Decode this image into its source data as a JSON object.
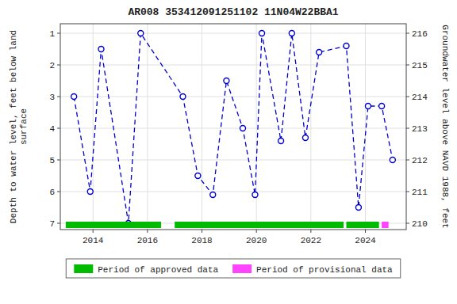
{
  "chart_data": {
    "type": "line",
    "title": "AR008 353412091251102 11N04W22BBA1",
    "ylabel": "Depth to water level, feet below land\nsurface",
    "y2label": "Groundwater level above NAVD 1988, feet",
    "x": [
      2013.3,
      2013.9,
      2014.3,
      2015.3,
      2015.75,
      2017.3,
      2017.85,
      2018.4,
      2018.9,
      2019.5,
      2019.95,
      2020.2,
      2020.9,
      2021.3,
      2021.8,
      2022.3,
      2023.3,
      2023.75,
      2024.1,
      2024.6,
      2025.0
    ],
    "series": [
      {
        "values": [
          3.0,
          6.0,
          1.5,
          7.0,
          1.0,
          3.0,
          5.5,
          6.1,
          2.5,
          4.0,
          6.1,
          1.0,
          4.4,
          1.0,
          4.3,
          1.6,
          1.4,
          6.5,
          3.3,
          3.3,
          5.0
        ],
        "color": "#0000cc",
        "marker": "circle",
        "line_style": "dashed"
      }
    ],
    "xlim": [
      2012.8,
      2025.5
    ],
    "xticks": [
      2014,
      2016,
      2018,
      2020,
      2022,
      2024
    ],
    "ylim": [
      7.2,
      0.7
    ],
    "yticks": [
      1,
      2,
      3,
      4,
      5,
      6,
      7
    ],
    "y2lim": [
      209.8,
      216.3
    ],
    "y2ticks": [
      210,
      211,
      212,
      213,
      214,
      215,
      216
    ],
    "periods": [
      {
        "name": "Period of approved data",
        "color": "#00bb00",
        "ranges": [
          [
            2013.0,
            2016.5
          ],
          [
            2017.0,
            2023.2
          ],
          [
            2023.3,
            2024.5
          ]
        ]
      },
      {
        "name": "Period of provisional data",
        "color": "#ff44ff",
        "ranges": [
          [
            2024.6,
            2024.85
          ]
        ]
      }
    ],
    "period_band": [
      6.95,
      7.15
    ],
    "grid": true,
    "legend": "bottom"
  }
}
